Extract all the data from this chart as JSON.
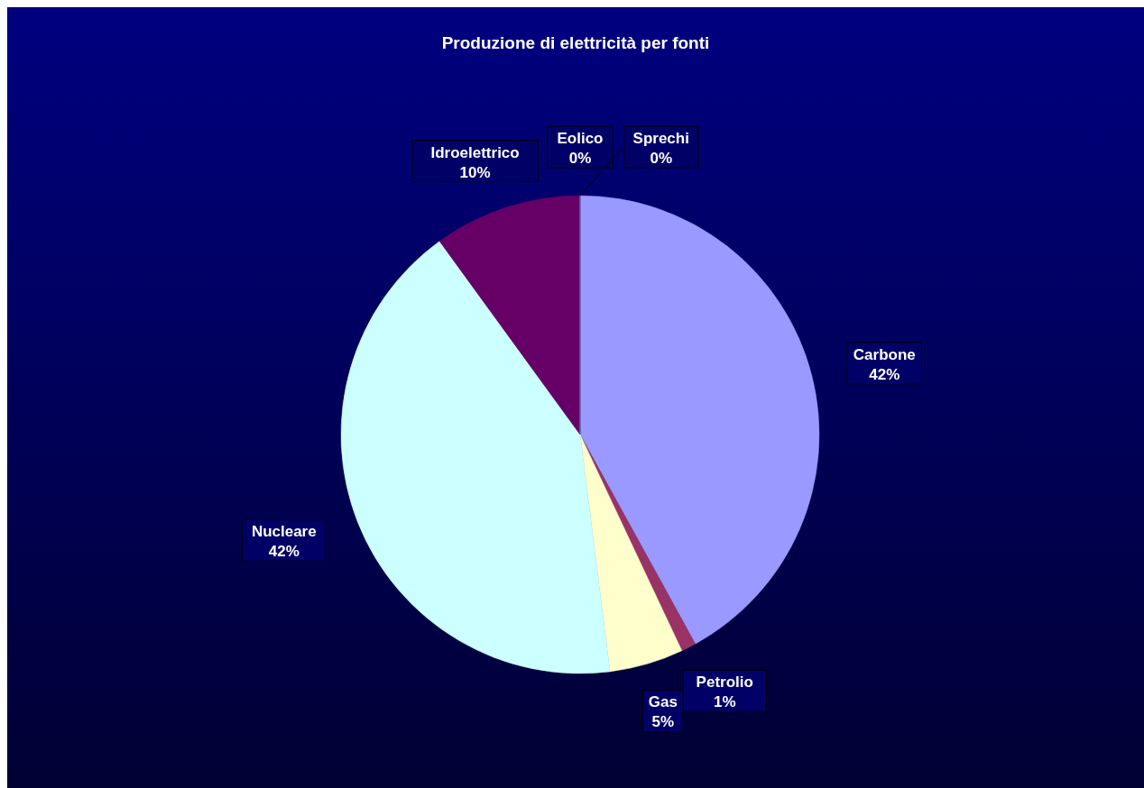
{
  "chart_data": {
    "type": "pie",
    "title": "Produzione di elettricità per fonti",
    "categories": [
      "Carbone",
      "Petrolio",
      "Gas",
      "Nucleare",
      "Idroelettrico",
      "Eolico",
      "Sprechi"
    ],
    "values": [
      42,
      1,
      5,
      42,
      10,
      0,
      0
    ],
    "colors": [
      "#9999ff",
      "#993366",
      "#ffffcc",
      "#ccffff",
      "#660066",
      "#ff8080",
      "#0066cc"
    ],
    "value_labels": [
      "42%",
      "1%",
      "5%",
      "42%",
      "10%",
      "0%",
      "0%"
    ]
  }
}
